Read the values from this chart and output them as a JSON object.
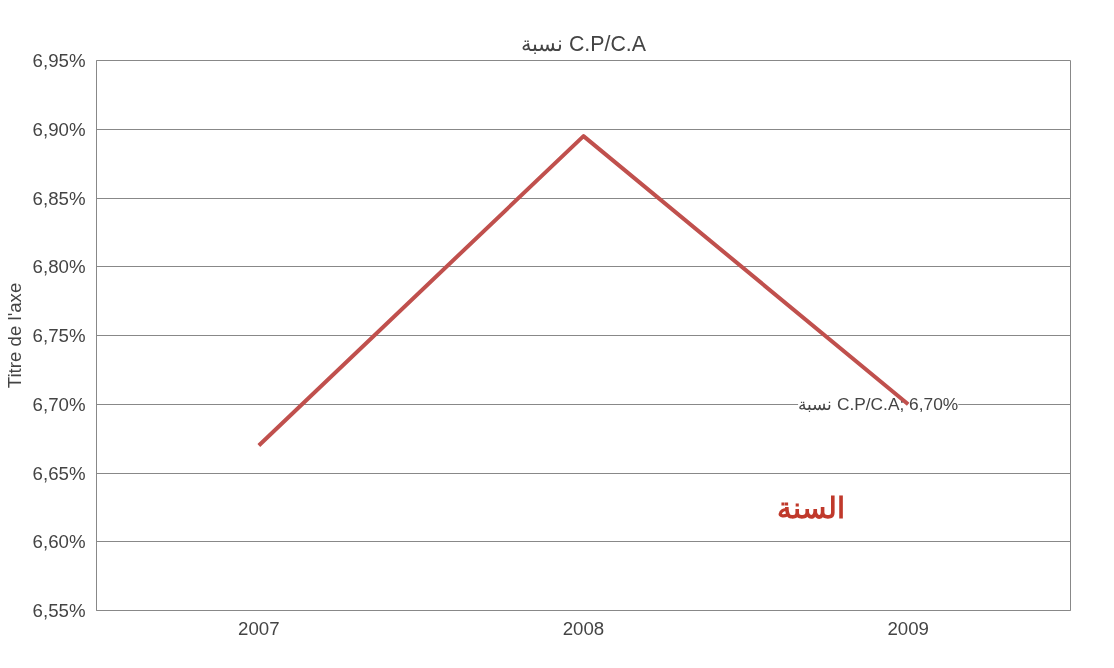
{
  "chart_data": {
    "type": "line",
    "title": "نسبة C.P/C.A",
    "xlabel": "السنة",
    "ylabel": "Titre de l'axe",
    "categories": [
      "2007",
      "2008",
      "2009"
    ],
    "series": [
      {
        "color": "#c0504d",
        "values": [
          6.67,
          6.895,
          6.7
        ],
        "value_labels": [
          null,
          null,
          "نسبة C.P/C.A; 6,70%"
        ]
      }
    ],
    "ylim": [
      6.55,
      6.95
    ],
    "yticks": [
      {
        "value": 6.55,
        "label": "6,55%"
      },
      {
        "value": 6.6,
        "label": "6,60%"
      },
      {
        "value": 6.65,
        "label": "6,65%"
      },
      {
        "value": 6.7,
        "label": "6,70%"
      },
      {
        "value": 6.75,
        "label": "6,75%"
      },
      {
        "value": 6.8,
        "label": "6,80%"
      },
      {
        "value": 6.85,
        "label": "6,85%"
      },
      {
        "value": 6.9,
        "label": "6,90%"
      },
      {
        "value": 6.95,
        "label": "6,95%"
      }
    ],
    "grid": "y",
    "marker": "none",
    "line_style": "solid"
  }
}
